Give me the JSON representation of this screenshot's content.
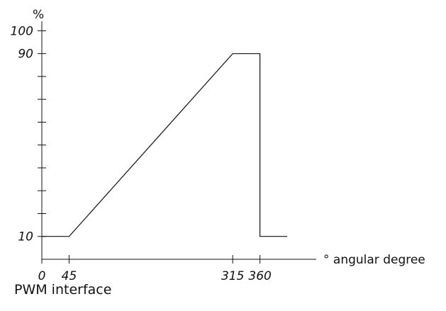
{
  "caption": "PWM interface",
  "chart_data": {
    "type": "line",
    "title": "",
    "xlabel": "° angular degree",
    "ylabel": "%",
    "xlim": [
      0,
      430
    ],
    "ylim": [
      0,
      100
    ],
    "x_tick_labels": [
      "0",
      "45",
      "315",
      "360"
    ],
    "x_tick_values": [
      0,
      45,
      315,
      360
    ],
    "y_tick_labels": [
      "10",
      "90",
      "100"
    ],
    "y_tick_values": [
      10,
      90,
      100
    ],
    "y_minor_ticks": [
      20,
      30,
      40,
      50,
      60,
      70,
      80
    ],
    "grid": false,
    "series": [
      {
        "x": [
          0,
          45,
          315,
          360,
          360,
          405
        ],
        "y": [
          10,
          10,
          90,
          90,
          10,
          10
        ]
      }
    ]
  }
}
